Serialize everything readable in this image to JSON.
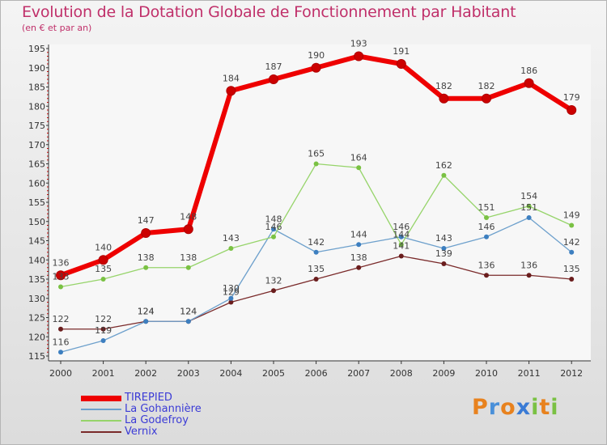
{
  "header": {
    "title": "Evolution de la Dotation Globale de Fonctionnement par Habitant",
    "subtitle": "(en € et par an)"
  },
  "brand": {
    "text": "Proxiti",
    "colors": [
      "#e8821e",
      "#4a90d9",
      "#e8821e",
      "#3a7bd5",
      "#7ac143",
      "#e8821e",
      "#7ac143"
    ]
  },
  "chart_data": {
    "type": "line",
    "categories": [
      "2000",
      "2001",
      "2002",
      "2003",
      "2004",
      "2005",
      "2006",
      "2007",
      "2008",
      "2009",
      "2010",
      "2011",
      "2012"
    ],
    "ylim": [
      115,
      195
    ],
    "yticks": [
      "115",
      "120",
      "125",
      "130",
      "135",
      "140",
      "145",
      "150",
      "155",
      "160",
      "165",
      "170",
      "175",
      "180",
      "185",
      "190",
      "195"
    ],
    "series": [
      {
        "name": "TIREPIED",
        "color": "#ee0000",
        "marker": "#cc0000",
        "width": 6,
        "values": [
          136,
          140,
          147,
          148,
          184,
          187,
          190,
          193,
          191,
          182,
          182,
          186,
          179
        ]
      },
      {
        "name": "La Gohannière",
        "color": "#6da0cc",
        "marker": "#3d7fc0",
        "width": 1.3,
        "values": [
          116,
          119,
          124,
          124,
          130,
          148,
          142,
          144,
          146,
          143,
          146,
          151,
          142
        ]
      },
      {
        "name": "La Godefroy",
        "color": "#96d46a",
        "marker": "#7ac143",
        "width": 1.3,
        "values": [
          133,
          135,
          138,
          138,
          143,
          146,
          165,
          164,
          144,
          162,
          151,
          154,
          149
        ]
      },
      {
        "name": "Vernix",
        "color": "#7a2a2a",
        "marker": "#6a1d1d",
        "width": 1.3,
        "values": [
          122,
          122,
          124,
          124,
          129,
          132,
          135,
          138,
          141,
          139,
          136,
          136,
          135
        ]
      }
    ],
    "grid": false,
    "legend_position": "bottom-left"
  }
}
